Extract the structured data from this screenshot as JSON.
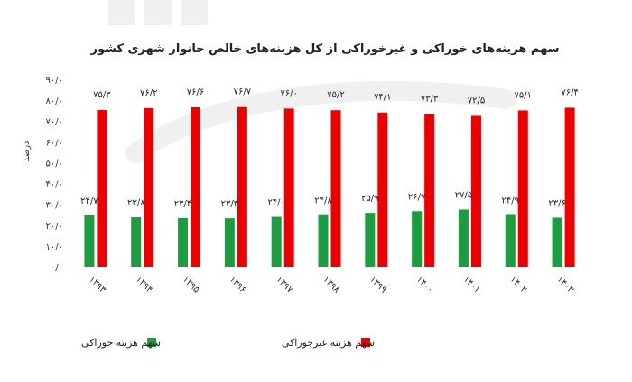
{
  "chart_data": {
    "type": "bar",
    "title": "سهم هزینه‌های خوراکی و غیرخوراکی از کل هزینه‌های خالص خانوار شهری کشور",
    "ylabel": "درصد",
    "xlabel": "",
    "ylim": [
      0,
      90
    ],
    "y_ticks": [
      0,
      10,
      20,
      30,
      40,
      50,
      60,
      70,
      80,
      90
    ],
    "y_tick_labels": [
      "۰/۰",
      "۱۰/۰",
      "۲۰/۰",
      "۳۰/۰",
      "۴۰/۰",
      "۵۰/۰",
      "۶۰/۰",
      "۷۰/۰",
      "۸۰/۰",
      "۹۰/۰"
    ],
    "categories": [
      "۱۳۹۳",
      "۱۳۹۴",
      "۱۳۹۵",
      "۱۳۹۶",
      "۱۳۹۷",
      "۱۳۹۸",
      "۱۳۹۹",
      "۱۴۰۰",
      "۱۴۰۱",
      "۱۴۰۲",
      "۱۴۰۳"
    ],
    "series": [
      {
        "name": "سهم هزینه خوراکی",
        "color": "#1a9e3f",
        "values": [
          24.7,
          23.8,
          23.4,
          23.3,
          24.0,
          24.8,
          25.9,
          26.7,
          27.5,
          24.9,
          23.6
        ],
        "labels": [
          "۲۴/۷",
          "۲۳/۸",
          "۲۳/۴",
          "۲۳/۳",
          "۲۴/۰",
          "۲۴/۸",
          "۲۵/۹",
          "۲۶/۷",
          "۲۷/۵",
          "۲۴/۹",
          "۲۳/۶"
        ]
      },
      {
        "name": "سهم هزینه غیرخوراکی",
        "color": "#ee0000",
        "values": [
          75.3,
          76.2,
          76.6,
          76.7,
          76.0,
          75.2,
          74.1,
          73.3,
          72.5,
          75.1,
          76.4
        ],
        "labels": [
          "۷۵/۳",
          "۷۶/۲",
          "۷۶/۶",
          "۷۶/۷",
          "۷۶/۰",
          "۷۵/۲",
          "۷۴/۱",
          "۷۳/۳",
          "۷۲/۵",
          "۷۵/۱",
          "۷۶/۴"
        ]
      }
    ],
    "grid": false,
    "legend_position": "bottom"
  }
}
